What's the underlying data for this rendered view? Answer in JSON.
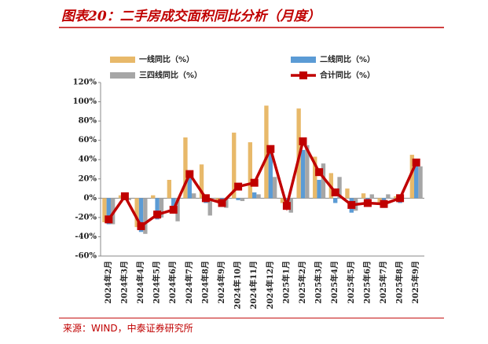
{
  "chart_data": {
    "type": "bar-line",
    "title": "图表20：二手房成交面积同比分析（月度）",
    "source": "来源：WIND，中泰证券研究所",
    "categories": [
      "2024年2月",
      "2024年3月",
      "2024年4月",
      "2024年5月",
      "2024年6月",
      "2024年7月",
      "2024年8月",
      "2024年9月",
      "2024年10月",
      "2024年11月",
      "2024年12月",
      "2025年1月",
      "2025年2月",
      "2025年3月",
      "2025年4月",
      "2025年5月",
      "2025年6月",
      "2025年7月",
      "2025年8月",
      "2025年9月"
    ],
    "series": [
      {
        "name": "一线同比（%）",
        "color": "#e8b96a",
        "kind": "bar",
        "values": [
          -25,
          3,
          -30,
          3,
          19,
          63,
          35,
          -3,
          68,
          58,
          96,
          -5,
          93,
          43,
          26,
          10,
          5,
          -6,
          2,
          45
        ]
      },
      {
        "name": "二线同比（%）",
        "color": "#5b9bd5",
        "kind": "bar",
        "values": [
          -27,
          0,
          -35,
          -22,
          -15,
          22,
          -5,
          -8,
          -2,
          6,
          48,
          -10,
          50,
          19,
          -5,
          -15,
          -6,
          -10,
          -5,
          35
        ]
      },
      {
        "name": "三四线同比（%）",
        "color": "#a6a6a6",
        "kind": "bar",
        "values": [
          -27,
          -2,
          -37,
          -20,
          -24,
          5,
          -18,
          -10,
          -3,
          4,
          22,
          -15,
          55,
          36,
          22,
          -13,
          4,
          4,
          0,
          33
        ]
      },
      {
        "name": "合计同比（%）",
        "color": "#c00000",
        "kind": "line",
        "values": [
          -22,
          2,
          -29,
          -17,
          -12,
          25,
          0,
          -5,
          12,
          16,
          51,
          -8,
          59,
          27,
          6,
          -7,
          -5,
          -6,
          0,
          37
        ]
      }
    ],
    "ylim": [
      -60,
      120
    ],
    "yticks": [
      {
        "value": -60,
        "label": "-60%"
      },
      {
        "value": -40,
        "label": "-40%"
      },
      {
        "value": -20,
        "label": "-20%"
      },
      {
        "value": 0,
        "label": "0%"
      },
      {
        "value": 20,
        "label": "20%"
      },
      {
        "value": 40,
        "label": "40%"
      },
      {
        "value": 60,
        "label": "60%"
      },
      {
        "value": 80,
        "label": "80%"
      },
      {
        "value": 100,
        "label": "100%"
      },
      {
        "value": 120,
        "label": "120%"
      }
    ]
  }
}
